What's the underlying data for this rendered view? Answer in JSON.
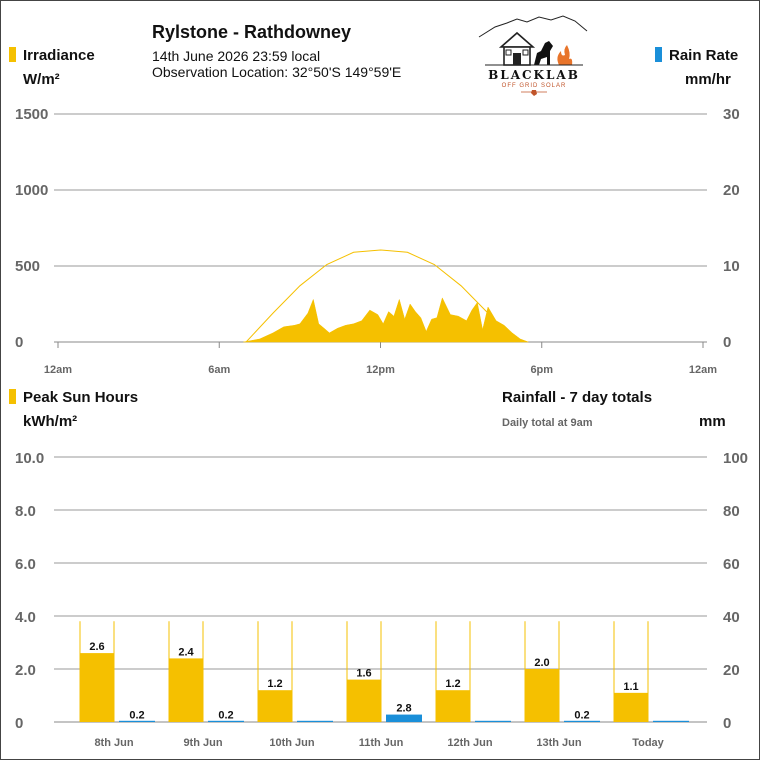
{
  "header": {
    "station": "Rylstone - Rathdowney",
    "datetime": "14th June 2026  23:59 local",
    "location": "Observation Location: 32°50'S 149°59'E"
  },
  "logo": {
    "brand": "BLACKLAB",
    "tagline": "OFF GRID SOLAR"
  },
  "colors": {
    "sun": "#f5c000",
    "rain": "#1a8fd9",
    "clear_sky": "#f5c000",
    "grid": "#999999",
    "axis_text": "#666666"
  },
  "top_chart": {
    "left_series_label": "Irradiance",
    "left_unit": "W/m²",
    "right_series_label": "Rain Rate",
    "right_unit": "mm/hr"
  },
  "bottom_chart": {
    "left_series_label": "Peak Sun Hours",
    "left_unit": "kWh/m²",
    "right_title": "Rainfall - 7 day totals",
    "right_note": "Daily total at 9am",
    "right_unit": "mm"
  },
  "chart_data": [
    {
      "type": "area",
      "y_left_ticks": [
        "0",
        "500",
        "1000",
        "1500"
      ],
      "y_right_ticks": [
        "0",
        "10",
        "20",
        "30"
      ],
      "ylim": [
        0,
        1500
      ],
      "y2lim": [
        0,
        30
      ],
      "x_ticks": [
        "12am",
        "6am",
        "12pm",
        "6pm",
        "12am"
      ],
      "x_hours": [
        0,
        6,
        12,
        18,
        24
      ],
      "grid": true,
      "series": [
        {
          "kind": "irradiance",
          "x": [
            6.9,
            7.5,
            8.0,
            8.4,
            8.8,
            9.0,
            9.3,
            9.5,
            9.7,
            9.9,
            10.1,
            10.4,
            10.7,
            11.0,
            11.3,
            11.6,
            11.9,
            12.1,
            12.3,
            12.5,
            12.7,
            12.9,
            13.1,
            13.3,
            13.5,
            13.7,
            13.9,
            14.1,
            14.3,
            14.6,
            14.9,
            15.2,
            15.4,
            15.6,
            15.8,
            16.0,
            16.3,
            16.6,
            16.9,
            17.2,
            17.5
          ],
          "y": [
            0,
            20,
            60,
            100,
            110,
            120,
            190,
            280,
            120,
            90,
            60,
            90,
            110,
            120,
            140,
            210,
            180,
            120,
            200,
            170,
            280,
            150,
            250,
            200,
            160,
            70,
            150,
            160,
            290,
            180,
            170,
            140,
            210,
            260,
            80,
            230,
            140,
            110,
            60,
            20,
            0
          ]
        },
        {
          "kind": "clear_sky",
          "x": [
            7.0,
            8.0,
            9.0,
            10.0,
            11.0,
            12.0,
            13.0,
            14.0,
            15.0,
            16.0,
            17.0
          ],
          "y": [
            0,
            190,
            370,
            510,
            590,
            605,
            590,
            510,
            370,
            190,
            0
          ]
        },
        {
          "kind": "rain_rate",
          "x": [],
          "y": []
        }
      ]
    },
    {
      "type": "bar",
      "categories": [
        "8th Jun",
        "9th Jun",
        "10th Jun",
        "11th Jun",
        "12th Jun",
        "13th Jun",
        "Today"
      ],
      "y_left_ticks": [
        "0",
        "2.0",
        "4.0",
        "6.0",
        "8.0",
        "10.0"
      ],
      "y_right_ticks": [
        "0",
        "20",
        "40",
        "60",
        "80",
        "100"
      ],
      "ylim": [
        0,
        10
      ],
      "y2lim": [
        0,
        100
      ],
      "grid": true,
      "series": [
        {
          "kind": "sun",
          "values": [
            2.6,
            2.4,
            1.2,
            1.6,
            1.2,
            2.0,
            1.1
          ],
          "labels": [
            "2.6",
            "2.4",
            "1.2",
            "1.6",
            "1.2",
            "2.0",
            "1.1"
          ],
          "clear_sky": [
            3.8,
            3.8,
            3.8,
            3.8,
            3.8,
            3.8,
            3.8
          ]
        },
        {
          "kind": "rain",
          "values": [
            0.2,
            0.2,
            0,
            2.8,
            0,
            0.2,
            0
          ],
          "labels": [
            "0.2",
            "0.2",
            "",
            "2.8",
            "",
            "0.2",
            ""
          ]
        }
      ]
    }
  ]
}
